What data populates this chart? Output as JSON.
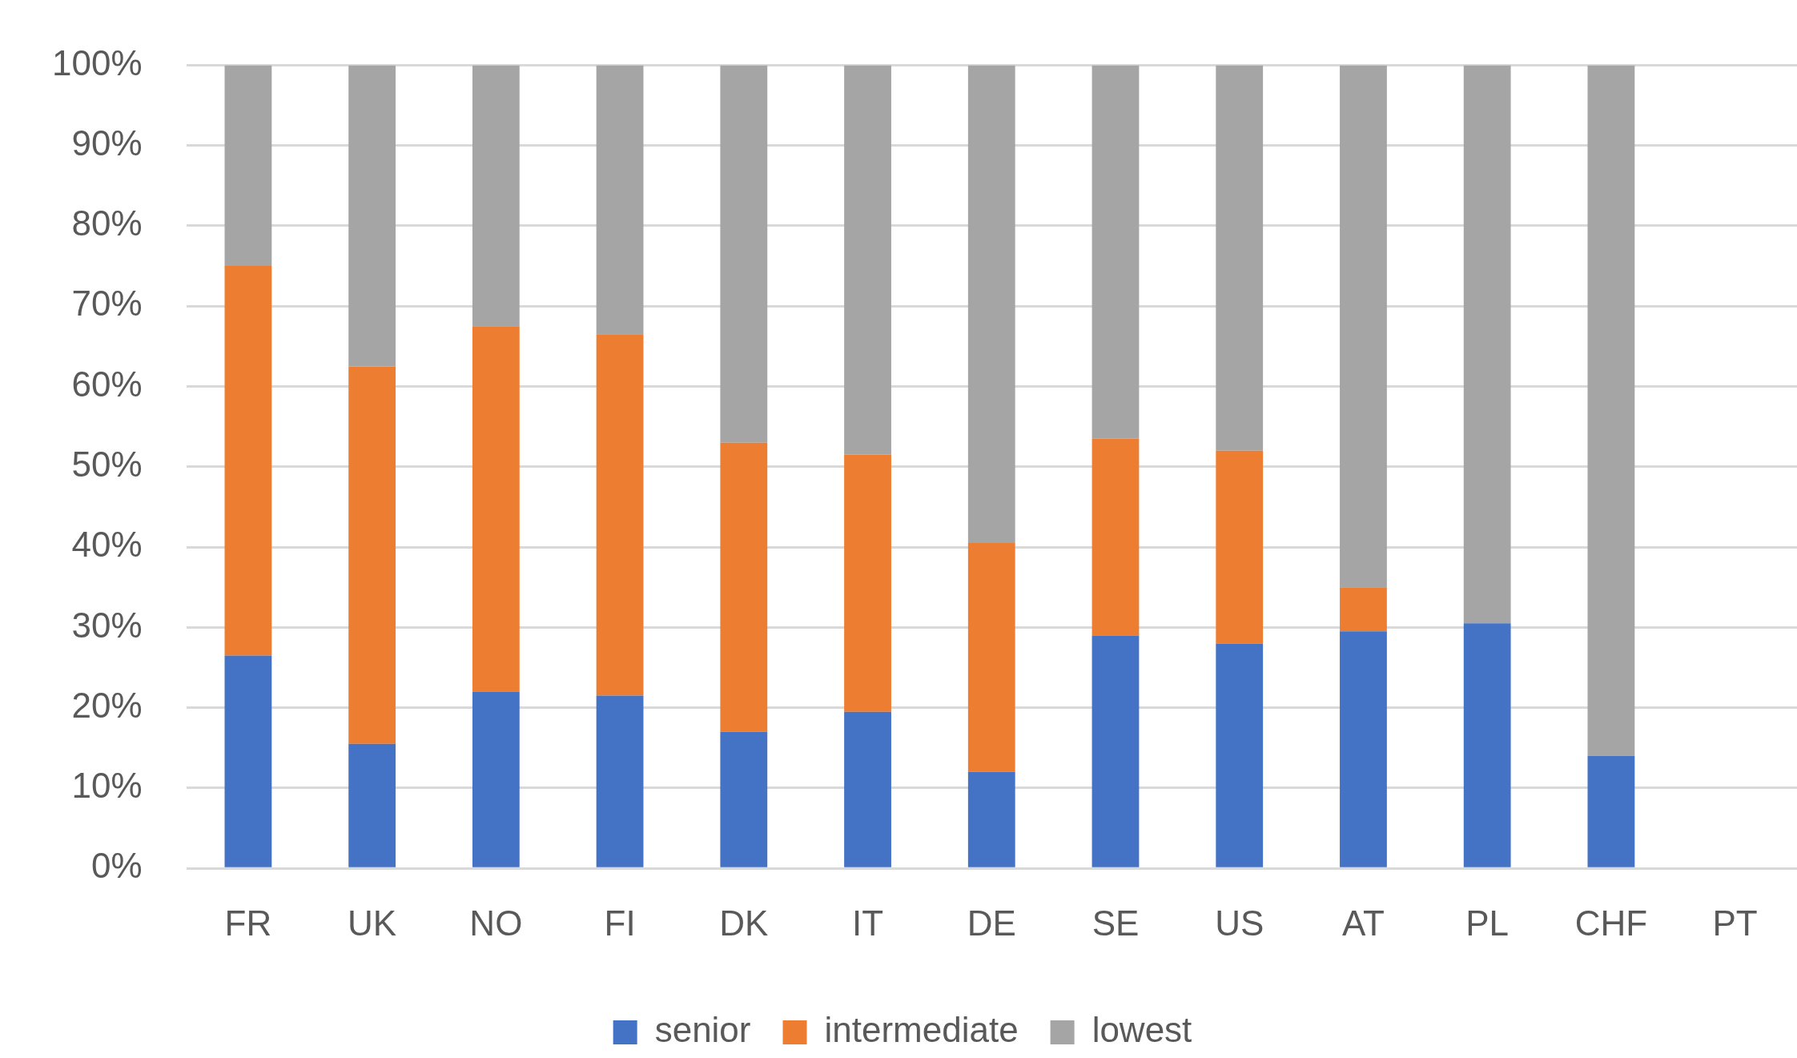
{
  "chart_data": {
    "type": "bar",
    "stacked": true,
    "categories": [
      "FR",
      "UK",
      "NO",
      "FI",
      "DK",
      "IT",
      "DE",
      "SE",
      "US",
      "AT",
      "PL",
      "CHF",
      "PT"
    ],
    "series": [
      {
        "name": "senior",
        "color": "#4472c4",
        "values": [
          26.5,
          15.5,
          22,
          21.5,
          17,
          19.5,
          12,
          29,
          28,
          29.5,
          30.5,
          14,
          null
        ]
      },
      {
        "name": "intermediate",
        "color": "#ed7d31",
        "values": [
          48.5,
          47,
          45.5,
          45,
          36,
          32,
          28.5,
          24.5,
          24,
          5.5,
          0,
          0,
          null
        ]
      },
      {
        "name": "lowest",
        "color": "#a5a5a5",
        "values": [
          25,
          37.5,
          32.5,
          33.5,
          47,
          48.5,
          59.5,
          46.5,
          48,
          65,
          69.5,
          86,
          null
        ]
      }
    ],
    "ylim": [
      0,
      100
    ],
    "yticks": [
      {
        "value": 0,
        "label": "0%"
      },
      {
        "value": 10,
        "label": "10%"
      },
      {
        "value": 20,
        "label": "20%"
      },
      {
        "value": 30,
        "label": "30%"
      },
      {
        "value": 40,
        "label": "40%"
      },
      {
        "value": 50,
        "label": "50%"
      },
      {
        "value": 60,
        "label": "60%"
      },
      {
        "value": 70,
        "label": "70%"
      },
      {
        "value": 80,
        "label": "80%"
      },
      {
        "value": 90,
        "label": "90%"
      },
      {
        "value": 100,
        "label": "100%"
      }
    ],
    "grid": "y",
    "legend": "bottom"
  }
}
